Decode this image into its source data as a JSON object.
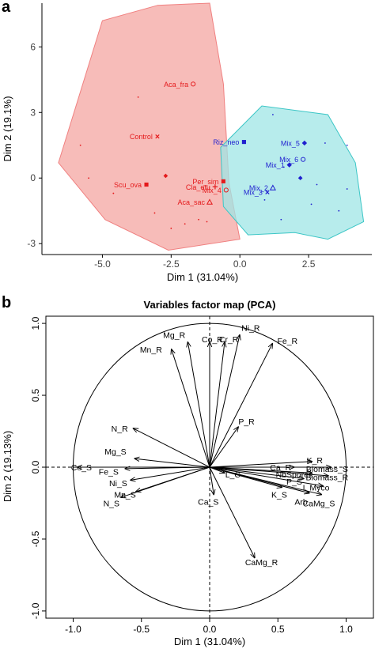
{
  "panel_a": {
    "label": "a",
    "chart_data": {
      "type": "scatter",
      "xlabel": "Dim 1 (31.04%)",
      "ylabel": "Dim 2 (19.1%)",
      "xlim": [
        -7.2,
        4.8
      ],
      "ylim": [
        -3.5,
        8.0
      ],
      "xticks": [
        -5.0,
        -2.5,
        0.0,
        2.5
      ],
      "xtick_labels": [
        "-5.0",
        "-2.5",
        "0.0",
        "2.5"
      ],
      "yticks": [
        -3,
        0,
        3,
        6
      ],
      "ytick_labels": [
        "-3",
        "0",
        "3",
        "6"
      ],
      "grid": false,
      "groups": [
        {
          "color": "#e41a1c",
          "fill": "#f4a6a2",
          "hull": [
            [
              -3.0,
              7.9
            ],
            [
              -5.0,
              7.2
            ],
            [
              -6.6,
              0.7
            ],
            [
              -4.9,
              -1.9
            ],
            [
              -2.6,
              -3.3
            ],
            [
              0.0,
              -2.8
            ],
            [
              -0.4,
              -0.2
            ],
            [
              -0.6,
              4.3
            ],
            [
              -1.1,
              8.0
            ]
          ],
          "labeled_points": [
            {
              "label": "Aca_fra",
              "x": -1.7,
              "y": 4.3,
              "marker": "circle"
            },
            {
              "label": "Control",
              "x": -3.0,
              "y": 1.9,
              "marker": "x"
            },
            {
              "label": "Scu_ova",
              "x": -3.4,
              "y": -0.3,
              "marker": "square"
            },
            {
              "label": "Per_sim",
              "x": -0.6,
              "y": -0.15,
              "marker": "square"
            },
            {
              "label": "Cla_etu",
              "x": -0.9,
              "y": -0.4,
              "marker": "plus"
            },
            {
              "label": "Mix_4",
              "x": -0.5,
              "y": -0.55,
              "marker": "circle"
            },
            {
              "label": "Aca_sac",
              "x": -1.1,
              "y": -1.1,
              "marker": "triangle"
            }
          ],
          "centroid": {
            "x": -2.7,
            "y": 0.1
          },
          "minor_points": [
            [
              -5.5,
              0.0
            ],
            [
              -3.7,
              3.7
            ],
            [
              -2.5,
              -2.3
            ],
            [
              -1.5,
              -1.9
            ],
            [
              -4.6,
              -0.7
            ],
            [
              -2.0,
              -2.1
            ],
            [
              -3.1,
              -1.6
            ],
            [
              -1.2,
              -2.0
            ],
            [
              -5.8,
              1.5
            ]
          ]
        },
        {
          "color": "#1f1fcf",
          "fill": "#9fe6e6",
          "hull": [
            [
              0.8,
              3.3
            ],
            [
              -0.7,
              1.4
            ],
            [
              -0.6,
              -1.3
            ],
            [
              0.3,
              -2.6
            ],
            [
              2.0,
              -2.5
            ],
            [
              3.2,
              -2.8
            ],
            [
              4.5,
              -2.0
            ],
            [
              4.2,
              0.7
            ],
            [
              3.2,
              2.9
            ]
          ],
          "labeled_points": [
            {
              "label": "Riz_neo",
              "x": 0.15,
              "y": 1.65,
              "marker": "square"
            },
            {
              "label": "Mix_5",
              "x": 2.35,
              "y": 1.6,
              "marker": "diamond"
            },
            {
              "label": "Mix_6",
              "x": 2.3,
              "y": 0.85,
              "marker": "circle"
            },
            {
              "label": "Mix_1",
              "x": 1.8,
              "y": 0.6,
              "marker": "diamond"
            },
            {
              "label": "Mix_2",
              "x": 1.2,
              "y": -0.45,
              "marker": "triangle"
            },
            {
              "label": "Mix_3",
              "x": 1.0,
              "y": -0.65,
              "marker": "x"
            }
          ],
          "centroid": {
            "x": 2.2,
            "y": 0.0
          },
          "minor_points": [
            [
              1.2,
              2.9
            ],
            [
              1.6,
              0.5
            ],
            [
              3.1,
              1.6
            ],
            [
              3.9,
              1.5
            ],
            [
              2.8,
              -0.3
            ],
            [
              3.6,
              -1.5
            ],
            [
              1.5,
              -1.9
            ],
            [
              2.6,
              -1.2
            ],
            [
              3.9,
              -0.5
            ],
            [
              0.9,
              -1.0
            ]
          ]
        }
      ]
    }
  },
  "panel_b": {
    "label": "b",
    "chart_data": {
      "type": "vector",
      "title": "Variables factor map (PCA)",
      "xlabel": "Dim 1 (31.04%)",
      "ylabel": "Dim 2 (19.13%)",
      "xlim": [
        -1.2,
        1.2
      ],
      "ylim": [
        -1.05,
        1.05
      ],
      "xticks": [
        -1.0,
        -0.5,
        0.0,
        0.5,
        1.0
      ],
      "xtick_labels": [
        "-1.0",
        "-0.5",
        "0.0",
        "0.5",
        "1.0"
      ],
      "yticks": [
        -1.0,
        -0.5,
        0.0,
        0.5,
        1.0
      ],
      "ytick_labels": [
        "-1.0",
        "-0.5",
        "0.0",
        "0.5",
        "1.0"
      ],
      "unit_circle": true,
      "vectors": [
        {
          "label": "Mg_R",
          "x": -0.16,
          "y": 0.87,
          "lx": -0.26,
          "ly": 0.92
        },
        {
          "label": "Mn_R",
          "x": -0.28,
          "y": 0.82,
          "lx": -0.43,
          "ly": 0.82
        },
        {
          "label": "Co_R",
          "x": 0.0,
          "y": 0.87,
          "lx": 0.02,
          "ly": 0.89
        },
        {
          "label": "Cr_R",
          "x": 0.11,
          "y": 0.87,
          "lx": 0.14,
          "ly": 0.89
        },
        {
          "label": "Ni_R",
          "x": 0.22,
          "y": 0.92,
          "lx": 0.3,
          "ly": 0.97
        },
        {
          "label": "Fe_R",
          "x": 0.46,
          "y": 0.86,
          "lx": 0.57,
          "ly": 0.88
        },
        {
          "label": "P_R",
          "x": 0.21,
          "y": 0.28,
          "lx": 0.27,
          "ly": 0.32
        },
        {
          "label": "N_R",
          "x": -0.56,
          "y": 0.27,
          "lx": -0.66,
          "ly": 0.27
        },
        {
          "label": "Mg_S",
          "x": -0.55,
          "y": 0.06,
          "lx": -0.69,
          "ly": 0.11
        },
        {
          "label": "Co_S",
          "x": -0.97,
          "y": 0.0,
          "lx": -0.94,
          "ly": 0.0
        },
        {
          "label": "Fe_S",
          "x": -0.62,
          "y": -0.01,
          "lx": -0.74,
          "ly": -0.03
        },
        {
          "label": "Ni_S",
          "x": -0.58,
          "y": -0.09,
          "lx": -0.67,
          "ly": -0.11
        },
        {
          "label": "Mn_S",
          "x": -0.54,
          "y": -0.17,
          "lx": -0.62,
          "ly": -0.19
        },
        {
          "label": "N_S",
          "x": -0.65,
          "y": -0.21,
          "lx": -0.72,
          "ly": -0.25
        },
        {
          "label": "Ca_R",
          "x": 0.62,
          "y": 0.0,
          "lx": 0.52,
          "ly": 0.0
        },
        {
          "label": "K_R",
          "x": 0.75,
          "y": 0.04,
          "lx": 0.77,
          "ly": 0.05
        },
        {
          "label": "Biomass_S",
          "x": 0.89,
          "y": 0.0,
          "lx": 0.86,
          "ly": -0.01
        },
        {
          "label": "NbSpores",
          "x": 0.75,
          "y": -0.04,
          "lx": 0.62,
          "ly": -0.05
        },
        {
          "label": "Biomass_R",
          "x": 0.87,
          "y": -0.06,
          "lx": 0.86,
          "ly": -0.07
        },
        {
          "label": "P_S",
          "x": 0.69,
          "y": -0.08,
          "lx": 0.62,
          "ly": -0.1
        },
        {
          "label": "I_Myco",
          "x": 0.83,
          "y": -0.13,
          "lx": 0.78,
          "ly": -0.14
        },
        {
          "label": "K_S",
          "x": 0.53,
          "y": -0.14,
          "lx": 0.51,
          "ly": -0.19
        },
        {
          "label": "Arb",
          "x": 0.73,
          "y": -0.18,
          "lx": 0.67,
          "ly": -0.24
        },
        {
          "label": "CaMg_S",
          "x": 0.82,
          "y": -0.19,
          "lx": 0.8,
          "ly": -0.25
        },
        {
          "label": "L_C",
          "x": 0.11,
          "y": -0.04,
          "lx": 0.17,
          "ly": -0.05
        },
        {
          "label": "Ca_S",
          "x": 0.03,
          "y": -0.19,
          "lx": -0.01,
          "ly": -0.24
        },
        {
          "label": "CaMg_R",
          "x": 0.33,
          "y": -0.63,
          "lx": 0.38,
          "ly": -0.66
        }
      ]
    }
  }
}
